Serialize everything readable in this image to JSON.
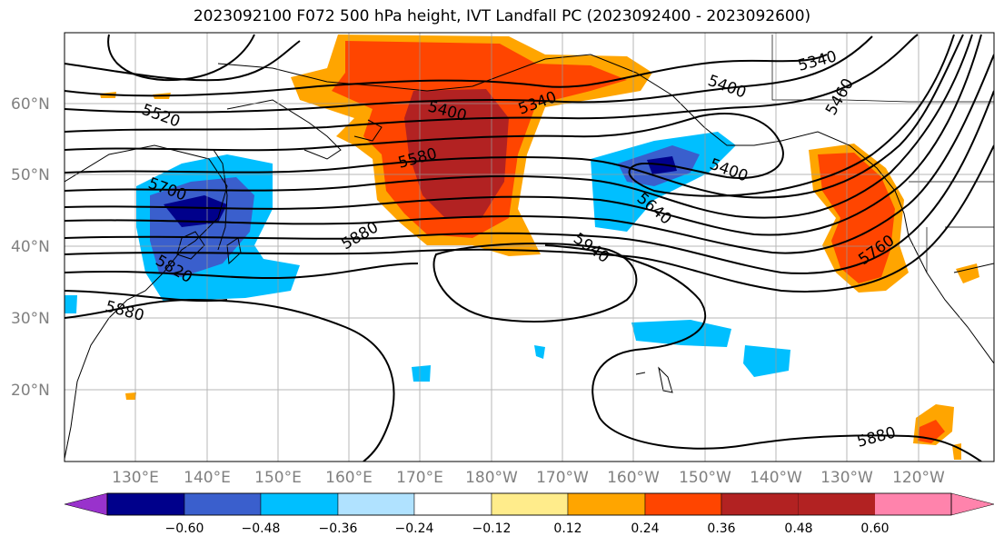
{
  "title": "2023092100 F072 500 hPa height, IVT Landfall PC (2023092400 - 2023092600)",
  "lat_labels": [
    "60°N",
    "50°N",
    "40°N",
    "30°N",
    "20°N"
  ],
  "lon_labels": [
    "130°E",
    "140°E",
    "150°E",
    "160°E",
    "170°E",
    "180°W",
    "170°W",
    "160°W",
    "150°W",
    "140°W",
    "130°W",
    "120°W"
  ],
  "contour_labels": [
    "5340",
    "5400",
    "5340",
    "5400",
    "5460",
    "5520",
    "5580",
    "5700",
    "5880",
    "5820",
    "5880",
    "5940",
    "5640",
    "5400",
    "5760",
    "5880"
  ],
  "colorbar": {
    "colors": [
      "#9932cc",
      "#00008b",
      "#3a5fcd",
      "#00bfff",
      "#b0e2ff",
      "#ffffff",
      "#ffec8b",
      "#ffa500",
      "#ff4500",
      "#b22222",
      "#ff83ac"
    ],
    "ticks": [
      "−0.60",
      "−0.48",
      "−0.36",
      "−0.24",
      "−0.12",
      "0.12",
      "0.24",
      "0.36",
      "0.48",
      "0.60"
    ]
  }
}
